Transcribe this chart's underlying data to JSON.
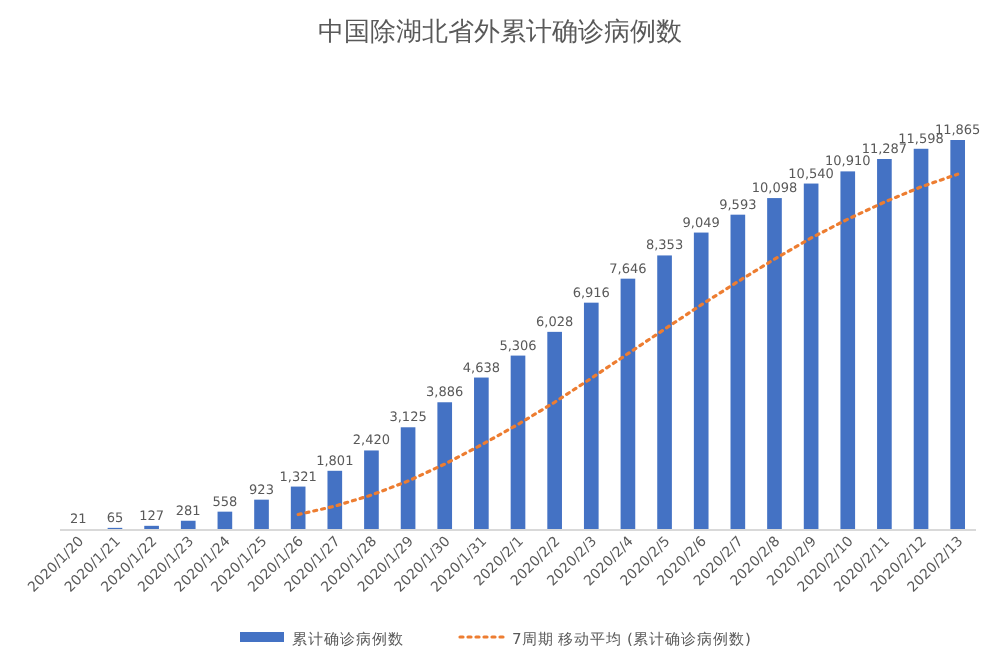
{
  "chart_data": {
    "type": "bar",
    "title": "中国除湖北省外累计确诊病例数",
    "categories": [
      "2020/1/20",
      "2020/1/21",
      "2020/1/22",
      "2020/1/23",
      "2020/1/24",
      "2020/1/25",
      "2020/1/26",
      "2020/1/27",
      "2020/1/28",
      "2020/1/29",
      "2020/1/30",
      "2020/1/31",
      "2020/2/1",
      "2020/2/2",
      "2020/2/3",
      "2020/2/4",
      "2020/2/5",
      "2020/2/6",
      "2020/2/7",
      "2020/2/8",
      "2020/2/9",
      "2020/2/10",
      "2020/2/11",
      "2020/2/12",
      "2020/2/13"
    ],
    "series": [
      {
        "name": "累计确诊病例数",
        "color": "#4472c4",
        "value_labels": [
          "21",
          "65",
          "127",
          "281",
          "558",
          "923",
          "1,321",
          "1,801",
          "2,420",
          "3,125",
          "3,886",
          "4,638",
          "5,306",
          "6,028",
          "6,916",
          "7,646",
          "8,353",
          "9,049",
          "9,593",
          "10,098",
          "10,540",
          "10,910",
          "11,287",
          "11,598",
          "11,865"
        ],
        "values": [
          21,
          65,
          127,
          281,
          558,
          923,
          1321,
          1801,
          2420,
          3125,
          3886,
          4638,
          5306,
          6028,
          6916,
          7646,
          8353,
          9049,
          9593,
          10098,
          10540,
          10910,
          11287,
          11598,
          11865
        ]
      },
      {
        "name": "7周期 移动平均 (累计确诊病例数)",
        "type": "line",
        "color": "#ed7d31",
        "line_style": "dotted",
        "values": [
          null,
          null,
          null,
          null,
          null,
          null,
          471,
          725,
          1062,
          1490,
          2005,
          2588,
          3214,
          3886,
          4617,
          5364,
          6110,
          6848,
          7556,
          8240,
          8885,
          9456,
          9976,
          10439,
          10824
        ]
      }
    ],
    "legend": "bottom"
  }
}
